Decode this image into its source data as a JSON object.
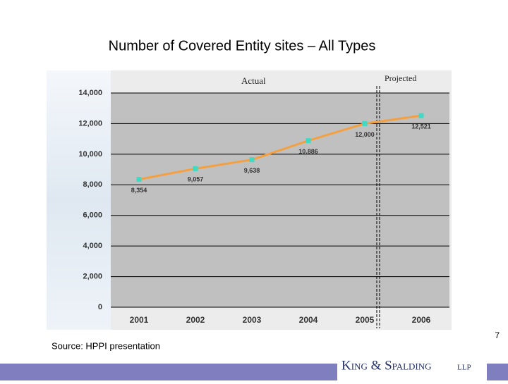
{
  "slide": {
    "title": "Number of Covered Entity sites – All Types",
    "source": "Source: HPPI presentation",
    "page_number": "7",
    "logo": {
      "name": "King & Spalding",
      "suffix": "LLP"
    }
  },
  "chart_data": {
    "type": "line",
    "categories": [
      "2001",
      "2002",
      "2003",
      "2004",
      "2005",
      "2006"
    ],
    "values": [
      8354,
      9057,
      9638,
      10886,
      12000,
      12521
    ],
    "value_labels": [
      "8,354",
      "9,057",
      "9,638",
      "10,886",
      "12,000",
      "12,521"
    ],
    "color": "#f5a040",
    "marker_color": "#3fd9c4",
    "ylim": [
      0,
      14000
    ],
    "yticks": [
      0,
      {
        "value": 2000,
        "label": "2,000"
      },
      {
        "value": 4000,
        "label": "4,000"
      },
      {
        "value": 6000,
        "label": "6,000"
      },
      {
        "value": 8000,
        "label": "8,000"
      },
      {
        "value": 10000,
        "label": "10,000"
      },
      {
        "value": 12000,
        "label": "12,000"
      },
      {
        "value": 14000,
        "label": "14,000"
      }
    ],
    "grid": true,
    "annotations": [
      "Actual",
      "Projected"
    ]
  }
}
